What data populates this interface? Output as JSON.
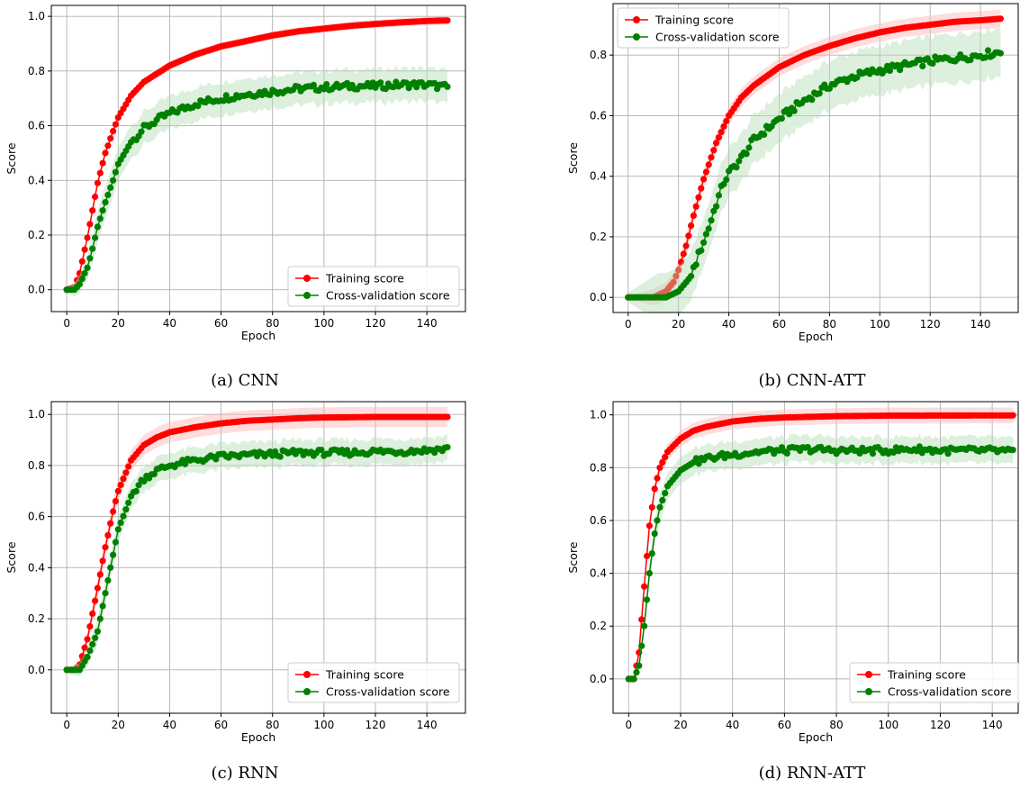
{
  "figure": {
    "panels": [
      {
        "caption": "(a) CNN"
      },
      {
        "caption": "(b) CNN-ATT"
      },
      {
        "caption": "(c) RNN"
      },
      {
        "caption": "(d) RNN-ATT"
      }
    ]
  },
  "colors": {
    "training": "#ff0000",
    "validation": "#008000",
    "training_band": "#ffb3b3",
    "validation_band": "#b3dbb3",
    "grid": "#b0b0b0"
  },
  "chart_data": [
    {
      "type": "line",
      "xlabel": "Epoch",
      "ylabel": "Score",
      "xlim": [
        -6,
        155
      ],
      "ylim": [
        -0.08,
        1.04
      ],
      "xticks": [
        0,
        20,
        40,
        60,
        80,
        100,
        120,
        140
      ],
      "yticks": [
        0.0,
        0.2,
        0.4,
        0.6,
        0.8,
        1.0
      ],
      "grid": true,
      "legend_position": "bottom-right",
      "x_range": [
        0,
        148
      ],
      "series": [
        {
          "name": "Training score",
          "points": [
            [
              0,
              0.0
            ],
            [
              3,
              0.01
            ],
            [
              5,
              0.06
            ],
            [
              8,
              0.19
            ],
            [
              10,
              0.29
            ],
            [
              12,
              0.39
            ],
            [
              15,
              0.5
            ],
            [
              18,
              0.58
            ],
            [
              20,
              0.63
            ],
            [
              25,
              0.71
            ],
            [
              30,
              0.76
            ],
            [
              35,
              0.79
            ],
            [
              40,
              0.82
            ],
            [
              50,
              0.86
            ],
            [
              60,
              0.89
            ],
            [
              70,
              0.91
            ],
            [
              80,
              0.93
            ],
            [
              90,
              0.945
            ],
            [
              100,
              0.955
            ],
            [
              110,
              0.965
            ],
            [
              120,
              0.972
            ],
            [
              130,
              0.978
            ],
            [
              140,
              0.983
            ],
            [
              148,
              0.985
            ]
          ],
          "band": 0.015
        },
        {
          "name": "Cross-validation score",
          "points": [
            [
              0,
              0.0
            ],
            [
              3,
              0.0
            ],
            [
              5,
              0.02
            ],
            [
              8,
              0.08
            ],
            [
              10,
              0.15
            ],
            [
              12,
              0.23
            ],
            [
              15,
              0.32
            ],
            [
              18,
              0.4
            ],
            [
              20,
              0.46
            ],
            [
              25,
              0.54
            ],
            [
              30,
              0.59
            ],
            [
              35,
              0.62
            ],
            [
              40,
              0.645
            ],
            [
              50,
              0.68
            ],
            [
              60,
              0.7
            ],
            [
              70,
              0.715
            ],
            [
              80,
              0.725
            ],
            [
              90,
              0.735
            ],
            [
              100,
              0.74
            ],
            [
              110,
              0.745
            ],
            [
              120,
              0.745
            ],
            [
              130,
              0.75
            ],
            [
              140,
              0.75
            ],
            [
              148,
              0.74
            ]
          ],
          "band": 0.06
        }
      ]
    },
    {
      "type": "line",
      "xlabel": "Epoch",
      "ylabel": "Score",
      "xlim": [
        -6,
        155
      ],
      "ylim": [
        -0.05,
        0.97
      ],
      "xticks": [
        0,
        20,
        40,
        60,
        80,
        100,
        120,
        140
      ],
      "yticks": [
        0.0,
        0.2,
        0.4,
        0.6,
        0.8
      ],
      "grid": true,
      "legend_position": "top-left",
      "x_range": [
        0,
        148
      ],
      "series": [
        {
          "name": "Training score",
          "points": [
            [
              0,
              0.0
            ],
            [
              10,
              0.0
            ],
            [
              15,
              0.02
            ],
            [
              18,
              0.05
            ],
            [
              20,
              0.09
            ],
            [
              23,
              0.17
            ],
            [
              26,
              0.27
            ],
            [
              30,
              0.39
            ],
            [
              35,
              0.51
            ],
            [
              40,
              0.6
            ],
            [
              45,
              0.66
            ],
            [
              50,
              0.7
            ],
            [
              60,
              0.76
            ],
            [
              70,
              0.8
            ],
            [
              80,
              0.83
            ],
            [
              90,
              0.855
            ],
            [
              100,
              0.875
            ],
            [
              110,
              0.89
            ],
            [
              120,
              0.9
            ],
            [
              130,
              0.91
            ],
            [
              140,
              0.915
            ],
            [
              148,
              0.92
            ]
          ],
          "band": 0.03
        },
        {
          "name": "Cross-validation score",
          "points": [
            [
              0,
              0.0
            ],
            [
              15,
              0.0
            ],
            [
              20,
              0.02
            ],
            [
              25,
              0.07
            ],
            [
              28,
              0.14
            ],
            [
              32,
              0.23
            ],
            [
              35,
              0.31
            ],
            [
              38,
              0.38
            ],
            [
              40,
              0.41
            ],
            [
              45,
              0.46
            ],
            [
              50,
              0.52
            ],
            [
              60,
              0.59
            ],
            [
              70,
              0.65
            ],
            [
              80,
              0.7
            ],
            [
              90,
              0.73
            ],
            [
              100,
              0.75
            ],
            [
              110,
              0.765
            ],
            [
              120,
              0.78
            ],
            [
              130,
              0.79
            ],
            [
              140,
              0.8
            ],
            [
              148,
              0.81
            ]
          ],
          "band": 0.08
        }
      ]
    },
    {
      "type": "line",
      "xlabel": "Epoch",
      "ylabel": "Score",
      "xlim": [
        -6,
        155
      ],
      "ylim": [
        -0.17,
        1.05
      ],
      "xticks": [
        0,
        20,
        40,
        60,
        80,
        100,
        120,
        140
      ],
      "yticks": [
        0.0,
        0.2,
        0.4,
        0.6,
        0.8,
        1.0
      ],
      "grid": true,
      "legend_position": "bottom-right",
      "x_range": [
        0,
        148
      ],
      "series": [
        {
          "name": "Training score",
          "points": [
            [
              0,
              0.0
            ],
            [
              3,
              0.0
            ],
            [
              5,
              0.02
            ],
            [
              8,
              0.12
            ],
            [
              10,
              0.22
            ],
            [
              12,
              0.32
            ],
            [
              15,
              0.48
            ],
            [
              18,
              0.62
            ],
            [
              20,
              0.7
            ],
            [
              25,
              0.82
            ],
            [
              30,
              0.88
            ],
            [
              35,
              0.91
            ],
            [
              40,
              0.93
            ],
            [
              50,
              0.95
            ],
            [
              60,
              0.965
            ],
            [
              70,
              0.975
            ],
            [
              80,
              0.98
            ],
            [
              90,
              0.985
            ],
            [
              100,
              0.988
            ],
            [
              120,
              0.99
            ],
            [
              148,
              0.99
            ]
          ],
          "band": 0.04
        },
        {
          "name": "Cross-validation score",
          "points": [
            [
              0,
              0.0
            ],
            [
              5,
              0.0
            ],
            [
              8,
              0.05
            ],
            [
              10,
              0.1
            ],
            [
              12,
              0.15
            ],
            [
              15,
              0.3
            ],
            [
              18,
              0.45
            ],
            [
              20,
              0.55
            ],
            [
              25,
              0.68
            ],
            [
              30,
              0.75
            ],
            [
              35,
              0.78
            ],
            [
              40,
              0.8
            ],
            [
              50,
              0.82
            ],
            [
              60,
              0.835
            ],
            [
              70,
              0.84
            ],
            [
              80,
              0.845
            ],
            [
              90,
              0.85
            ],
            [
              100,
              0.85
            ],
            [
              110,
              0.85
            ],
            [
              120,
              0.855
            ],
            [
              130,
              0.855
            ],
            [
              140,
              0.86
            ],
            [
              148,
              0.865
            ]
          ],
          "band": 0.05
        }
      ]
    },
    {
      "type": "line",
      "xlabel": "Epoch",
      "ylabel": "Score",
      "xlim": [
        -6,
        150
      ],
      "ylim": [
        -0.13,
        1.05
      ],
      "xticks": [
        0,
        20,
        40,
        60,
        80,
        100,
        120,
        140
      ],
      "yticks": [
        0.0,
        0.2,
        0.4,
        0.6,
        0.8,
        1.0
      ],
      "grid": true,
      "legend_position": "bottom-right",
      "x_range": [
        0,
        148
      ],
      "series": [
        {
          "name": "Training score",
          "points": [
            [
              0,
              0.0
            ],
            [
              2,
              0.0
            ],
            [
              4,
              0.1
            ],
            [
              6,
              0.35
            ],
            [
              8,
              0.58
            ],
            [
              10,
              0.72
            ],
            [
              12,
              0.8
            ],
            [
              15,
              0.86
            ],
            [
              20,
              0.91
            ],
            [
              25,
              0.94
            ],
            [
              30,
              0.955
            ],
            [
              40,
              0.975
            ],
            [
              50,
              0.985
            ],
            [
              60,
              0.99
            ],
            [
              80,
              0.995
            ],
            [
              100,
              0.997
            ],
            [
              148,
              0.998
            ]
          ],
          "band": 0.03
        },
        {
          "name": "Cross-validation score",
          "points": [
            [
              0,
              0.0
            ],
            [
              2,
              0.0
            ],
            [
              4,
              0.05
            ],
            [
              6,
              0.2
            ],
            [
              8,
              0.4
            ],
            [
              10,
              0.55
            ],
            [
              12,
              0.65
            ],
            [
              15,
              0.73
            ],
            [
              20,
              0.79
            ],
            [
              25,
              0.82
            ],
            [
              30,
              0.835
            ],
            [
              40,
              0.85
            ],
            [
              50,
              0.86
            ],
            [
              60,
              0.865
            ],
            [
              70,
              0.87
            ],
            [
              80,
              0.865
            ],
            [
              90,
              0.865
            ],
            [
              100,
              0.865
            ],
            [
              110,
              0.87
            ],
            [
              120,
              0.865
            ],
            [
              130,
              0.865
            ],
            [
              140,
              0.865
            ],
            [
              148,
              0.86
            ]
          ],
          "band": 0.05
        }
      ]
    }
  ]
}
